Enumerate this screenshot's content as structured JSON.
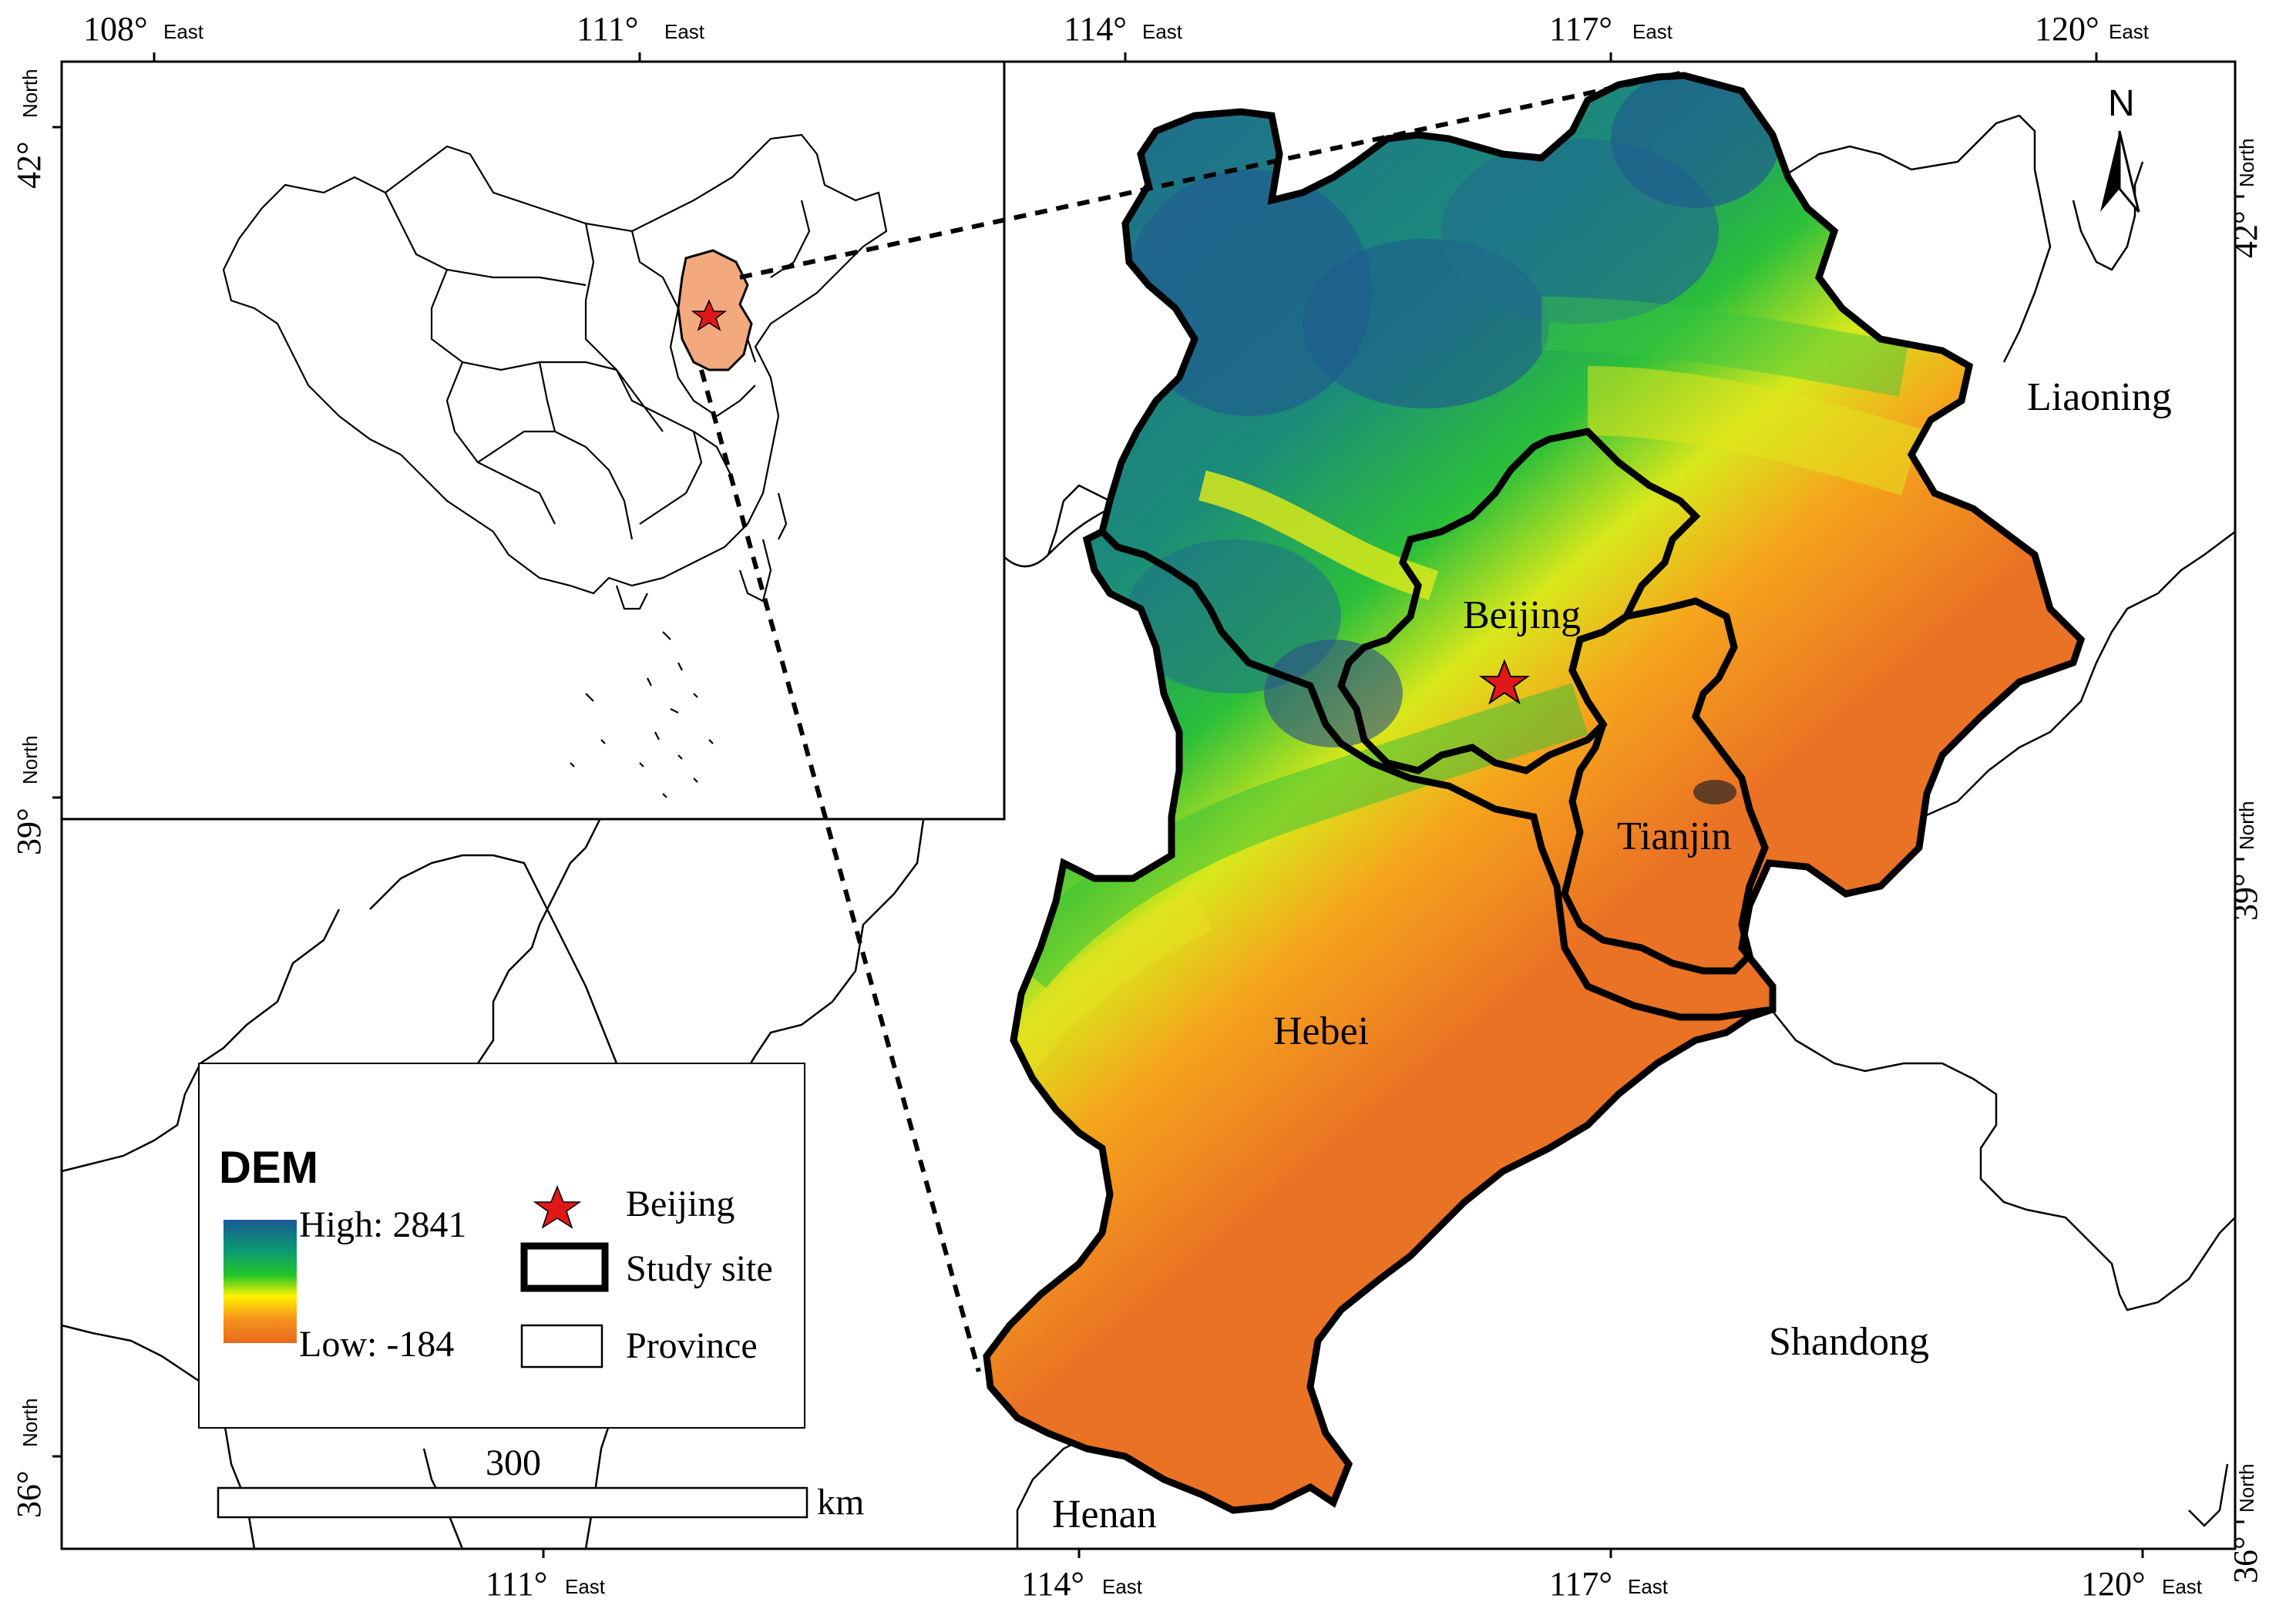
{
  "axes": {
    "top_ticks": [
      {
        "deg": "108°",
        "dir": "East"
      },
      {
        "deg": "111°",
        "dir": "East"
      },
      {
        "deg": "114°",
        "dir": "East"
      },
      {
        "deg": "117°",
        "dir": "East"
      },
      {
        "deg": "120°",
        "dir": "East"
      }
    ],
    "bottom_ticks": [
      {
        "deg": "111°",
        "dir": "East"
      },
      {
        "deg": "114°",
        "dir": "East"
      },
      {
        "deg": "117°",
        "dir": "East"
      },
      {
        "deg": "120°",
        "dir": "East"
      }
    ],
    "left_ticks": [
      {
        "deg": "42°",
        "dir": "North"
      },
      {
        "deg": "39°",
        "dir": "North"
      },
      {
        "deg": "36°",
        "dir": "North"
      }
    ],
    "right_ticks": [
      {
        "deg": "42°",
        "dir": "North"
      },
      {
        "deg": "39°",
        "dir": "North"
      },
      {
        "deg": "36°",
        "dir": "North"
      }
    ]
  },
  "north_arrow": {
    "label": "N",
    "icon": "north-arrow-icon"
  },
  "regions": {
    "beijing": "Beijing",
    "tianjin": "Tianjin",
    "hebei": "Hebei",
    "liaoning": "Liaoning",
    "shandong": "Shandong",
    "henan": "Henan"
  },
  "legend": {
    "title": "DEM",
    "high": "High: 2841",
    "low": "Low: -184",
    "ramp_colors": [
      "#1b5a96",
      "#0a9a72",
      "#23c629",
      "#fff200",
      "#f7941d",
      "#e86a1e"
    ],
    "items": [
      {
        "label": "Beijing",
        "icon": "star-icon",
        "color": "#e01818"
      },
      {
        "label": "Study site",
        "icon": "thick-box-icon"
      },
      {
        "label": "Province",
        "icon": "thin-box-icon"
      }
    ]
  },
  "scale_bar": {
    "value": "300",
    "unit": "km"
  },
  "colors": {
    "highland": "#1f6f8b",
    "lowland": "#ea7224",
    "star": "#e01818",
    "inset_highlight": "#f3a97e"
  }
}
